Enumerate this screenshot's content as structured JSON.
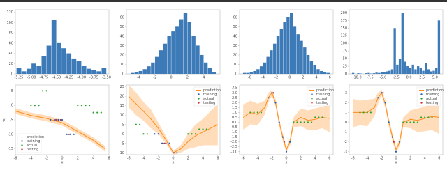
{
  "chart_data": [
    {
      "type": "histogram",
      "color": "#3d7ab8",
      "bins": [
        -5.3,
        -5.2,
        -5.1,
        -5.0,
        -4.9,
        -4.8,
        -4.7,
        -4.6,
        -4.5,
        -4.4,
        -4.3,
        -4.2,
        -4.1,
        -4.0,
        -3.9,
        -3.8,
        -3.7,
        -3.6,
        -3.5
      ],
      "counts": [
        12,
        5,
        10,
        20,
        15,
        35,
        55,
        105,
        60,
        50,
        40,
        30,
        25,
        15,
        10,
        8,
        5,
        12
      ],
      "xlim": [
        -5.32,
        -3.45
      ],
      "ylim": [
        0,
        125
      ],
      "xticks": [
        -5.25,
        {
          "value": -5,
          "label": "-5.00"
        },
        -4.75,
        {
          "value": -4.5,
          "label": "-4.50"
        },
        -4.25,
        {
          "value": -4,
          "label": "-4.00"
        },
        -3.75,
        {
          "value": -3.5,
          "label": "-3.50"
        }
      ],
      "yticks": [
        0,
        20,
        40,
        60,
        80,
        100,
        120
      ]
    },
    {
      "type": "histogram",
      "color": "#3d7ab8",
      "bins": [
        -5,
        -4.5,
        -4,
        -3.5,
        -3,
        -2.5,
        -2,
        -1.5,
        -1,
        -0.5,
        0,
        0.5,
        1,
        1.5,
        2,
        2.5,
        3,
        3.5,
        4,
        4.5,
        5,
        5.5
      ],
      "counts": [
        1,
        2,
        3,
        5,
        8,
        12,
        18,
        25,
        32,
        40,
        45,
        50,
        58,
        65,
        55,
        40,
        30,
        20,
        12,
        6,
        2
      ],
      "xlim": [
        -5.5,
        6
      ],
      "ylim": [
        0,
        68
      ],
      "xticks": [
        -4,
        -2,
        0,
        2,
        4
      ],
      "yticks": [
        0,
        10,
        20,
        30,
        40,
        50,
        60
      ]
    },
    {
      "type": "histogram",
      "color": "#3d7ab8",
      "bins": [
        -7,
        -6.5,
        -6,
        -5.5,
        -5,
        -4.5,
        -4,
        -3.5,
        -3,
        -2.5,
        -2,
        -1.5,
        -1,
        -0.5,
        0,
        0.5,
        1,
        1.5,
        2,
        2.5,
        3,
        3.5,
        4,
        4.5,
        5,
        5.5,
        6
      ],
      "counts": [
        1,
        1,
        2,
        3,
        5,
        8,
        12,
        18,
        25,
        32,
        40,
        48,
        55,
        60,
        65,
        50,
        42,
        35,
        28,
        20,
        14,
        9,
        5,
        3,
        2,
        1
      ],
      "xlim": [
        -7.5,
        6.5
      ],
      "ylim": [
        0,
        68
      ],
      "xticks": [
        -6,
        -4,
        -2,
        0,
        2,
        4,
        6
      ],
      "yticks": [
        0,
        10,
        20,
        30,
        40,
        50,
        60
      ]
    },
    {
      "type": "histogram",
      "color": "#3d7ab8",
      "bins": [
        -11,
        -10.5,
        -10,
        -9.5,
        -9,
        -8.5,
        -8,
        -7.5,
        -7,
        -6.5,
        -6,
        -5.5,
        -5,
        -4.5,
        -4,
        -3.5,
        -3,
        -2.5,
        -2,
        -1.5,
        -1,
        -0.5,
        0,
        0.5,
        1,
        1.5,
        2,
        2.5,
        3,
        3.5,
        4,
        4.5,
        5,
        5.5,
        6
      ],
      "counts": [
        3,
        0,
        2,
        1,
        0,
        2,
        3,
        1,
        2,
        4,
        3,
        5,
        6,
        8,
        10,
        15,
        150,
        30,
        50,
        200,
        40,
        25,
        20,
        30,
        15,
        25,
        20,
        10,
        35,
        15,
        8,
        10,
        20,
        175
      ],
      "xlim": [
        -11.5,
        6.5
      ],
      "ylim": [
        0,
        210
      ],
      "xticks": [
        {
          "value": -10,
          "label": "-10.0"
        },
        -7.5,
        {
          "value": -5,
          "label": "-5.0"
        },
        -2.5,
        {
          "value": 0,
          "label": "0.0"
        },
        2.5,
        {
          "value": 5,
          "label": "5.0"
        }
      ],
      "yticks": [
        0,
        25,
        50,
        75,
        100,
        125,
        150,
        175,
        200
      ]
    },
    {
      "type": "line",
      "xlabel": "x",
      "ylabel": "y",
      "legend": "lower left",
      "xlim": [
        -6,
        6
      ],
      "ylim": [
        -17,
        7
      ],
      "xticks": [
        -6,
        -4,
        -2,
        0,
        2,
        4,
        6
      ],
      "yticks": [
        -15,
        -10,
        -5,
        0,
        5
      ],
      "x": [
        -6,
        -4,
        -2,
        0,
        2,
        4,
        5.5
      ],
      "band": {
        "color": "#ffcf9e",
        "lower": [
          -3,
          -4.5,
          -5.5,
          -7,
          -10,
          -13,
          -16
        ],
        "upper": [
          -1,
          -2.5,
          -3.5,
          -5,
          -8,
          -11,
          -14
        ]
      },
      "series": [
        {
          "name": "prediction",
          "style": "line",
          "color": "#ff8c1a",
          "values": [
            -2,
            -3.5,
            -4.5,
            -6,
            -9,
            -12,
            -15
          ]
        },
        {
          "name": "training",
          "style": "points",
          "color": "#1f5fb4",
          "x": [
            -1.5,
            -1,
            -0.5,
            0,
            0.6,
            1,
            1.5
          ],
          "values": [
            -5,
            -5,
            -5,
            -5,
            -10,
            -10,
            -10
          ]
        },
        {
          "name": "actual",
          "style": "points",
          "color": "#2ca02c",
          "x": [
            -4,
            -3.5,
            -3,
            -2.5,
            -2,
            2,
            2.5,
            3,
            3.5,
            4,
            4.5,
            5
          ],
          "values": [
            0,
            0,
            0,
            5,
            5,
            0,
            0,
            0,
            0,
            -2.5,
            -2.5,
            -2.5
          ]
        },
        {
          "name": "testing",
          "style": "points",
          "color": "#d62728",
          "x": [
            -0.8,
            -0.2,
            0.8
          ],
          "values": [
            -5,
            -5,
            -10
          ]
        }
      ]
    },
    {
      "type": "line",
      "xlabel": "x",
      "legend": "upper right",
      "xlim": [
        -6.3,
        6.3
      ],
      "ylim": [
        -11,
        26
      ],
      "xticks": [
        -6,
        -4,
        -2,
        0,
        2,
        4,
        6
      ],
      "yticks": [
        -10,
        -5,
        0,
        5,
        10,
        15,
        20,
        25
      ],
      "x": [
        -6,
        -5,
        -4,
        -3,
        -2,
        -1,
        0,
        1,
        2,
        3,
        4,
        5,
        6
      ],
      "band": {
        "color": "#ffcf9e",
        "lower": [
          14,
          10,
          7,
          3,
          0,
          -5,
          -11,
          -10,
          -8,
          -7,
          -6,
          -6,
          -6
        ],
        "upper": [
          26,
          22,
          17,
          13,
          6,
          -1,
          -9,
          -6,
          0,
          5,
          8,
          12,
          16
        ]
      },
      "series": [
        {
          "name": "prediction",
          "style": "line",
          "color": "#ff8c1a",
          "values": [
            20,
            16,
            12,
            8,
            3,
            -3,
            -10,
            -8,
            -4,
            -1,
            1,
            3,
            5
          ]
        },
        {
          "name": "training",
          "style": "points",
          "color": "#1f5fb4",
          "x": [
            -2.5,
            -2,
            -1.5,
            -1,
            -0.5,
            0,
            0.5
          ],
          "values": [
            0,
            0,
            -5,
            -5,
            -5,
            -10,
            -10
          ]
        },
        {
          "name": "actual",
          "style": "points",
          "color": "#2ca02c",
          "x": [
            -5,
            -4.5,
            -4,
            -3.5,
            2,
            2.5,
            3,
            3.5,
            4,
            4.5
          ],
          "values": [
            5,
            5,
            0,
            0,
            0,
            0,
            0,
            2.5,
            2.5,
            2.5
          ]
        },
        {
          "name": "testing",
          "style": "points",
          "color": "#d62728",
          "x": [
            -1.2,
            0.2
          ],
          "values": [
            -5,
            -10
          ]
        }
      ]
    },
    {
      "type": "line",
      "xlabel": "x",
      "legend": "upper right",
      "xlim": [
        -6.5,
        6.5
      ],
      "ylim": [
        -3.3,
        3.8
      ],
      "xticks": [
        -6,
        -4,
        -2,
        0,
        2,
        4,
        6
      ],
      "yticks": [
        {
          "value": -3,
          "label": "-3.0"
        },
        -2.5,
        {
          "value": -2,
          "label": "-2.0"
        },
        -1.5,
        {
          "value": -1,
          "label": "-1.0"
        },
        -0.5,
        {
          "value": 0,
          "label": "0.0"
        },
        0.5,
        {
          "value": 1,
          "label": "1.0"
        },
        1.5,
        {
          "value": 2,
          "label": "2.0"
        },
        2.5,
        {
          "value": 3,
          "label": "3.0"
        },
        3.5
      ],
      "x": [
        -6,
        -5,
        -4,
        -3,
        -2.5,
        -2,
        -1.5,
        -1,
        -0.5,
        0,
        0.5,
        1,
        2,
        3,
        4,
        5,
        6
      ],
      "band": {
        "color": "#ffcf9e",
        "lower": [
          -0.8,
          -0.2,
          -0.3,
          0.8,
          2,
          2.7,
          1.6,
          -0.4,
          -1.9,
          -3.1,
          -2.4,
          -0.5,
          -0.4,
          -0.8,
          -0.8,
          -0.6,
          -1
        ],
        "upper": [
          1.8,
          2.2,
          1.9,
          2.2,
          3,
          3.3,
          2.4,
          0.4,
          -1.1,
          -2.5,
          -1.6,
          0.5,
          1.4,
          1.2,
          1.4,
          1.6,
          1.8
        ]
      },
      "series": [
        {
          "name": "prediction",
          "style": "line",
          "color": "#ff8c1a",
          "values": [
            0.5,
            1,
            0.8,
            1.5,
            2.5,
            3,
            2,
            0,
            -1.5,
            -2.8,
            -2,
            0,
            0.5,
            0.2,
            0.3,
            0.5,
            0.4
          ]
        },
        {
          "name": "training",
          "style": "points",
          "color": "#1f5fb4",
          "x": [
            -2.5,
            -2,
            -1.5,
            -1,
            -0.5,
            0,
            0.5
          ],
          "values": [
            2.5,
            3,
            2,
            0,
            -1.5,
            -3,
            -2
          ]
        },
        {
          "name": "actual",
          "style": "points",
          "color": "#2ca02c",
          "x": [
            -5,
            -4.5,
            -4,
            -3.5,
            1,
            1.5,
            2,
            2.5,
            3,
            3.5,
            4,
            4.5,
            5
          ],
          "values": [
            1,
            1,
            1,
            1,
            0,
            0,
            0,
            0,
            0,
            0,
            0.5,
            0.5,
            0.5
          ]
        },
        {
          "name": "testing",
          "style": "points",
          "color": "#d62728",
          "x": [
            -1.8,
            -0.3
          ],
          "values": [
            3,
            -2
          ]
        }
      ]
    },
    {
      "type": "line",
      "xlabel": "x",
      "legend": "upper right",
      "xlim": [
        -6.5,
        6.5
      ],
      "ylim": [
        -3.3,
        3.8
      ],
      "xticks": [
        -6,
        -4,
        -2,
        0,
        2,
        4,
        6
      ],
      "yticks": [
        -3,
        -2,
        -1,
        0,
        1,
        2,
        3
      ],
      "x": [
        -6,
        -5,
        -4,
        -3,
        -2.5,
        -2,
        -1.5,
        -1,
        -0.5,
        0,
        0.5,
        1,
        2,
        3,
        4,
        5,
        6
      ],
      "band": {
        "color": "#ffcf9e",
        "lower": [
          -0.5,
          -0.3,
          -0.4,
          0.6,
          1.9,
          2.7,
          1.5,
          -0.4,
          -1.9,
          -3.1,
          -2.4,
          -0.5,
          -0.6,
          -1,
          -0.9,
          -0.8,
          -1.2
        ],
        "upper": [
          2.4,
          2.2,
          2.3,
          2.4,
          3,
          3.3,
          2.3,
          0.4,
          -1.1,
          -2.5,
          -1.6,
          0.5,
          1.2,
          1.4,
          1.6,
          1.9,
          2.1
        ]
      },
      "series": [
        {
          "name": "prediction",
          "style": "line",
          "color": "#ff8c1a",
          "values": [
            1,
            1,
            1,
            1.5,
            2.5,
            3,
            1.9,
            0,
            -1.5,
            -2.8,
            -2,
            0,
            0.3,
            0.2,
            0.4,
            0.6,
            0.5
          ]
        },
        {
          "name": "training",
          "style": "points",
          "color": "#1f5fb4",
          "x": [
            -2.5,
            -2,
            -1.5,
            -1,
            -0.5,
            0,
            0.5
          ],
          "values": [
            2.5,
            3,
            2,
            0,
            -1.5,
            -3,
            -2
          ]
        },
        {
          "name": "actual",
          "style": "points",
          "color": "#2ca02c",
          "x": [
            -5,
            -4.5,
            -4,
            -3.5,
            1,
            1.5,
            2,
            2.5,
            3,
            3.5,
            4,
            4.5,
            5
          ],
          "values": [
            1,
            1,
            1,
            1,
            0,
            0,
            0,
            0,
            0,
            0.5,
            0.5,
            0.5,
            0.5
          ]
        },
        {
          "name": "testing",
          "style": "points",
          "color": "#d62728",
          "x": [
            -1.8,
            -0.3
          ],
          "values": [
            3,
            -2
          ]
        }
      ]
    }
  ]
}
